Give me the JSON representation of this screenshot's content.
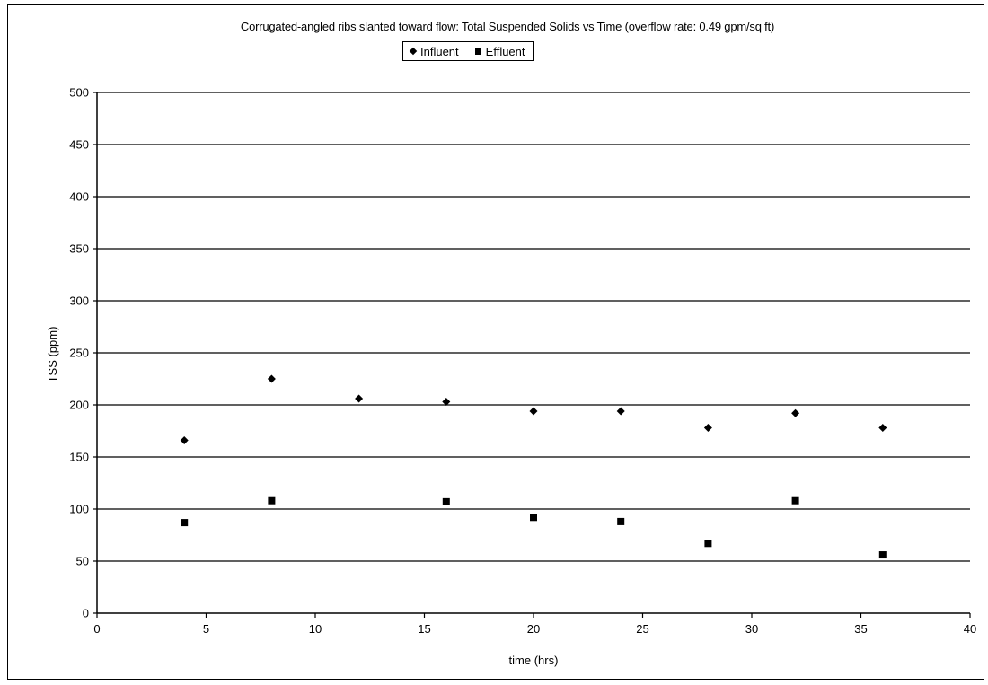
{
  "chart_data": {
    "type": "scatter",
    "title": "Corrugated-angled ribs slanted toward flow: Total Suspended Solids vs Time (overflow rate: 0.49 gpm/sq ft)",
    "xlabel": "time (hrs)",
    "ylabel": "TSS (ppm)",
    "xlim": [
      0,
      40
    ],
    "ylim": [
      0,
      500
    ],
    "xticks": [
      0,
      5,
      10,
      15,
      20,
      25,
      30,
      35,
      40
    ],
    "yticks": [
      0,
      50,
      100,
      150,
      200,
      250,
      300,
      350,
      400,
      450,
      500
    ],
    "grid": "horizontal",
    "legend_position": "top-center",
    "series": [
      {
        "name": "Influent",
        "marker": "diamond",
        "color": "#000000",
        "points": [
          [
            4,
            166
          ],
          [
            8,
            225
          ],
          [
            12,
            206
          ],
          [
            16,
            203
          ],
          [
            20,
            194
          ],
          [
            24,
            194
          ],
          [
            28,
            178
          ],
          [
            32,
            192
          ],
          [
            36,
            178
          ]
        ]
      },
      {
        "name": "Effluent",
        "marker": "square",
        "color": "#000000",
        "points": [
          [
            4,
            87
          ],
          [
            8,
            108
          ],
          [
            16,
            107
          ],
          [
            20,
            92
          ],
          [
            24,
            88
          ],
          [
            28,
            67
          ],
          [
            32,
            108
          ],
          [
            36,
            56
          ]
        ]
      }
    ]
  }
}
